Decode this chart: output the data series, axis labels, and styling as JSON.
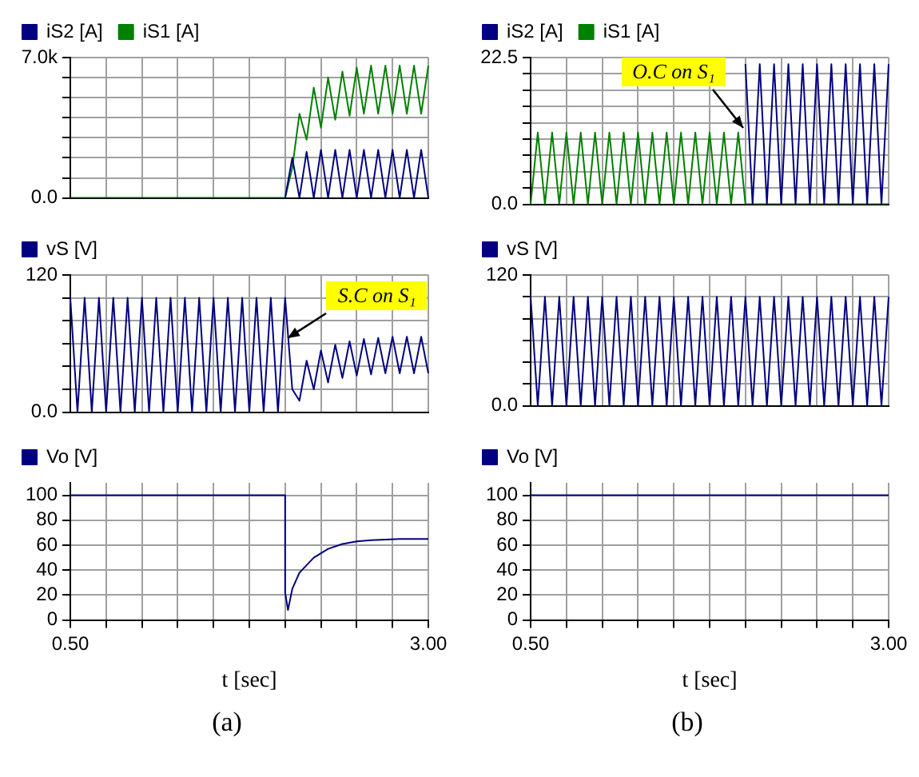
{
  "chart_data": [
    {
      "type": "line",
      "legend": "top",
      "grid": true,
      "categories": [
        null,
        null,
        null,
        null,
        null,
        null,
        null,
        null,
        null,
        null,
        null,
        null,
        null,
        null,
        null,
        null,
        null,
        null,
        null,
        null,
        null,
        null,
        null,
        null,
        null,
        null,
        null,
        null,
        null,
        null,
        null,
        null,
        null,
        null,
        null,
        null,
        null,
        null,
        null,
        null,
        null,
        null,
        null,
        null,
        null,
        null,
        null,
        null,
        null,
        null,
        null
      ],
      "ylim": [
        0,
        7000
      ],
      "yticks": [
        {
          "value": 0,
          "label": "0.0"
        },
        {
          "value": 1000,
          "label": null
        },
        {
          "value": 2000,
          "label": null
        },
        {
          "value": 3000,
          "label": null
        },
        {
          "value": 4000,
          "label": null
        },
        {
          "value": 5000,
          "label": null
        },
        {
          "value": 6000,
          "label": null
        },
        {
          "value": 7000,
          "label": "7.0k"
        }
      ],
      "series": [
        {
          "name": "iS2 [A]",
          "color": "#000080",
          "values": [
            null,
            null,
            null,
            null,
            null,
            null,
            null,
            null,
            null,
            null,
            null,
            null,
            null,
            null,
            null,
            null,
            null,
            null,
            null,
            null,
            null,
            null,
            null,
            null,
            null,
            null,
            null,
            null,
            null,
            null,
            0,
            2000,
            0,
            2300,
            0,
            2400,
            0,
            2400,
            0,
            2400,
            0,
            2400,
            0,
            2400,
            0,
            2400,
            0,
            2400,
            0,
            2400,
            0
          ]
        },
        {
          "name": "iS1 [A]",
          "color": "#008000",
          "values": [
            0,
            0,
            0,
            0,
            0,
            0,
            0,
            0,
            0,
            0,
            0,
            0,
            0,
            0,
            0,
            0,
            0,
            0,
            0,
            0,
            0,
            0,
            0,
            0,
            0,
            0,
            0,
            0,
            0,
            0,
            0,
            1500,
            4200,
            2900,
            5500,
            3500,
            6000,
            3900,
            6300,
            4100,
            6500,
            4200,
            6600,
            4200,
            6600,
            4200,
            6600,
            4200,
            6600,
            4200,
            6600
          ]
        }
      ]
    },
    {
      "type": "line",
      "legend": "top",
      "grid": true,
      "categories": [
        null,
        null,
        null,
        null,
        null,
        null,
        null,
        null,
        null,
        null,
        null,
        null,
        null,
        null,
        null,
        null,
        null,
        null,
        null,
        null,
        null,
        null,
        null,
        null,
        null,
        null,
        null,
        null,
        null,
        null,
        null,
        null,
        null,
        null,
        null,
        null,
        null,
        null,
        null,
        null,
        null,
        null,
        null,
        null,
        null,
        null,
        null,
        null,
        null,
        null,
        null
      ],
      "ylim": [
        0,
        22.5
      ],
      "yticks": [
        {
          "value": 0,
          "label": "0.0"
        },
        {
          "value": 2.5,
          "label": null
        },
        {
          "value": 5,
          "label": null
        },
        {
          "value": 7.5,
          "label": null
        },
        {
          "value": 10,
          "label": null
        },
        {
          "value": 12.5,
          "label": null
        },
        {
          "value": 15,
          "label": null
        },
        {
          "value": 17.5,
          "label": null
        },
        {
          "value": 20,
          "label": null
        },
        22.5
      ],
      "annotations": [
        "O.C on S₁"
      ],
      "series": [
        {
          "name": "iS2 [A]",
          "color": "#000080",
          "values": [
            null,
            null,
            null,
            null,
            null,
            null,
            null,
            null,
            null,
            null,
            null,
            null,
            null,
            null,
            null,
            null,
            null,
            null,
            null,
            null,
            null,
            null,
            null,
            null,
            null,
            null,
            null,
            null,
            null,
            null,
            21.5,
            0,
            21.5,
            0,
            21.5,
            0,
            21.5,
            0,
            21.5,
            0,
            21.5,
            0,
            21.5,
            0,
            21.5,
            0,
            21.5,
            0,
            21.5,
            0,
            21.5
          ]
        },
        {
          "name": "iS1 [A]",
          "color": "#008000",
          "values": [
            0,
            11,
            0,
            11,
            0,
            11,
            0,
            11,
            0,
            11,
            0,
            11,
            0,
            11,
            0,
            11,
            0,
            11,
            0,
            11,
            0,
            11,
            0,
            11,
            0,
            11,
            0,
            11,
            0,
            11,
            0,
            0,
            0,
            0,
            0,
            0,
            0,
            0,
            0,
            0,
            0,
            0,
            0,
            0,
            0,
            0,
            0,
            0,
            0,
            0,
            0
          ]
        }
      ]
    },
    {
      "type": "line",
      "legend": "top",
      "grid": true,
      "categories": [
        null,
        null,
        null,
        null,
        null,
        null,
        null,
        null,
        null,
        null,
        null,
        null,
        null,
        null,
        null,
        null,
        null,
        null,
        null,
        null,
        null,
        null,
        null,
        null,
        null,
        null,
        null,
        null,
        null,
        null,
        null,
        null,
        null,
        null,
        null,
        null,
        null,
        null,
        null,
        null,
        null,
        null,
        null,
        null,
        null,
        null,
        null,
        null,
        null,
        null,
        null
      ],
      "ylim": [
        0,
        120
      ],
      "yticks": [
        {
          "value": 0,
          "label": "0.0"
        },
        {
          "value": 20,
          "label": null
        },
        {
          "value": 40,
          "label": null
        },
        {
          "value": 60,
          "label": null
        },
        {
          "value": 80,
          "label": null
        },
        {
          "value": 100,
          "label": null
        },
        120
      ],
      "annotations": [
        "S.C on S₁"
      ],
      "series": [
        {
          "name": "vS [V]",
          "color": "#000080",
          "values": [
            100,
            0,
            100,
            0,
            100,
            0,
            100,
            0,
            100,
            0,
            100,
            0,
            100,
            0,
            100,
            0,
            100,
            0,
            100,
            0,
            100,
            0,
            100,
            0,
            100,
            0,
            100,
            0,
            100,
            0,
            100,
            20,
            10,
            45,
            20,
            54,
            26,
            59,
            30,
            62,
            32,
            64,
            33,
            65,
            34,
            66,
            34,
            66,
            34,
            66,
            34
          ]
        }
      ]
    },
    {
      "type": "line",
      "legend": "top",
      "grid": true,
      "categories": [
        null,
        null,
        null,
        null,
        null,
        null,
        null,
        null,
        null,
        null,
        null,
        null,
        null,
        null,
        null,
        null,
        null,
        null,
        null,
        null,
        null,
        null,
        null,
        null,
        null,
        null,
        null,
        null,
        null,
        null,
        null,
        null,
        null,
        null,
        null,
        null,
        null,
        null,
        null,
        null,
        null,
        null,
        null,
        null,
        null,
        null,
        null,
        null,
        null,
        null,
        null
      ],
      "ylim": [
        0,
        120
      ],
      "yticks": [
        {
          "value": 0,
          "label": "0.0"
        },
        {
          "value": 20,
          "label": null
        },
        {
          "value": 40,
          "label": null
        },
        {
          "value": 60,
          "label": null
        },
        {
          "value": 80,
          "label": null
        },
        {
          "value": 100,
          "label": null
        },
        120
      ],
      "series": [
        {
          "name": "vS [V]",
          "color": "#000080",
          "values": [
            100,
            0,
            100,
            0,
            100,
            0,
            100,
            0,
            100,
            0,
            100,
            0,
            100,
            0,
            100,
            0,
            100,
            0,
            100,
            0,
            100,
            0,
            100,
            0,
            100,
            0,
            100,
            0,
            100,
            0,
            100,
            0,
            100,
            0,
            100,
            0,
            100,
            0,
            100,
            0,
            100,
            0,
            100,
            0,
            100,
            0,
            100,
            0,
            100,
            0,
            100
          ]
        }
      ]
    },
    {
      "type": "line",
      "legend": "top",
      "grid": true,
      "xlabel": "t [sec]",
      "xlim": [
        0.5,
        3.0
      ],
      "xticks": [
        {
          "value": 0.5,
          "label": "0.50"
        },
        {
          "value": 0.75,
          "label": null
        },
        {
          "value": 1.0,
          "label": null
        },
        {
          "value": 1.25,
          "label": null
        },
        {
          "value": 1.5,
          "label": null
        },
        {
          "value": 1.75,
          "label": null
        },
        {
          "value": 2.0,
          "label": null
        },
        {
          "value": 2.25,
          "label": null
        },
        {
          "value": 2.5,
          "label": null
        },
        {
          "value": 2.75,
          "label": null
        },
        {
          "value": 3.0,
          "label": "3.00"
        }
      ],
      "ylim": [
        0,
        110
      ],
      "yticks": [
        0,
        20,
        40,
        60,
        80,
        100
      ],
      "annotations": [
        "(a)"
      ],
      "series": [
        {
          "name": "Vo [V]",
          "color": "#000080",
          "x": [
            0.5,
            1.0,
            1.5,
            2.0,
            2.0,
            2.02,
            2.05,
            2.1,
            2.2,
            2.3,
            2.4,
            2.5,
            2.6,
            2.8,
            3.0
          ],
          "values": [
            100,
            100,
            100,
            100,
            22,
            8,
            25,
            38,
            50,
            57,
            61,
            63,
            64,
            65,
            65
          ]
        }
      ]
    },
    {
      "type": "line",
      "legend": "top",
      "grid": true,
      "xlabel": "t [sec]",
      "xlim": [
        0.5,
        3.0
      ],
      "xticks": [
        {
          "value": 0.5,
          "label": "0.50"
        },
        {
          "value": 0.75,
          "label": null
        },
        {
          "value": 1.0,
          "label": null
        },
        {
          "value": 1.25,
          "label": null
        },
        {
          "value": 1.5,
          "label": null
        },
        {
          "value": 1.75,
          "label": null
        },
        {
          "value": 2.0,
          "label": null
        },
        {
          "value": 2.25,
          "label": null
        },
        {
          "value": 2.5,
          "label": null
        },
        {
          "value": 2.75,
          "label": null
        },
        {
          "value": 3.0,
          "label": "3.00"
        }
      ],
      "ylim": [
        0,
        110
      ],
      "yticks": [
        0,
        20,
        40,
        60,
        80,
        100
      ],
      "annotations": [
        "(b)"
      ],
      "series": [
        {
          "name": "Vo [V]",
          "color": "#000080",
          "x": [
            0.5,
            3.0
          ],
          "values": [
            100,
            100
          ]
        }
      ]
    }
  ]
}
